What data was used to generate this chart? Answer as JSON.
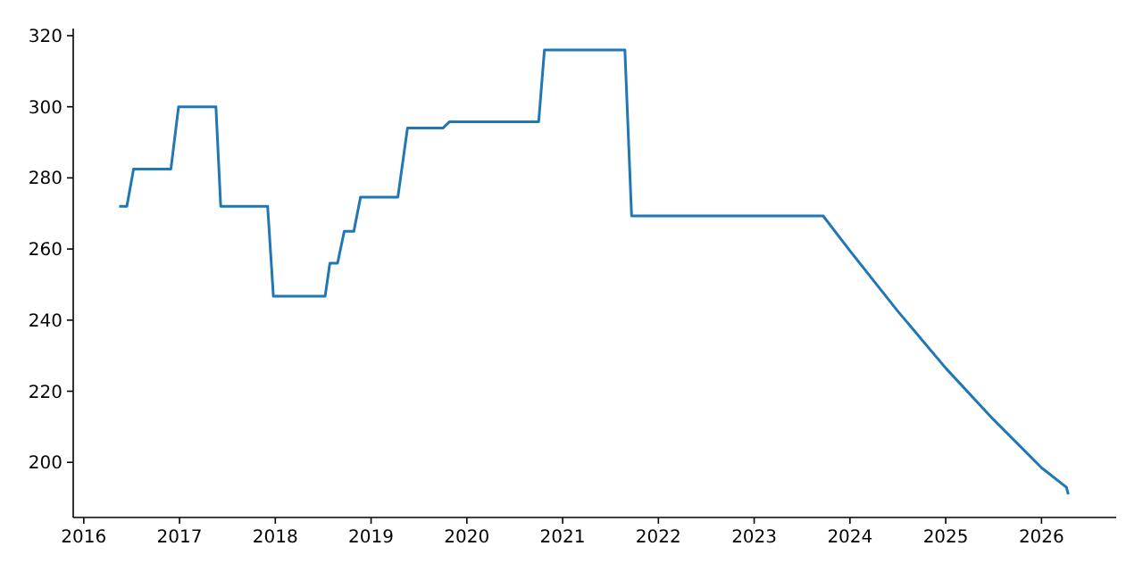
{
  "chart_data": {
    "type": "line",
    "xlim": [
      2015.89,
      2026.78
    ],
    "ylim": [
      184.5,
      322
    ],
    "xticks": [
      2016,
      2017,
      2018,
      2019,
      2020,
      2021,
      2022,
      2023,
      2024,
      2025,
      2026
    ],
    "yticks": [
      200,
      220,
      240,
      260,
      280,
      300,
      320
    ],
    "grid": false,
    "marker": "none",
    "line_style": "solid",
    "series": [
      {
        "color": "#1f77b4",
        "x": [
          2016.37,
          2016.45,
          2016.52,
          2016.91,
          2016.99,
          2017.38,
          2017.43,
          2017.92,
          2017.98,
          2018.52,
          2018.57,
          2018.65,
          2018.72,
          2018.82,
          2018.89,
          2019.28,
          2019.38,
          2019.75,
          2019.82,
          2020.75,
          2020.81,
          2021.65,
          2021.72,
          2023.72,
          2024,
          2024.5,
          2025,
          2025.5,
          2026,
          2026.26,
          2026.28
        ],
        "values": [
          272,
          272,
          282.5,
          282.5,
          300,
          300,
          272,
          272,
          246.7,
          246.7,
          256,
          256,
          265,
          265,
          274.6,
          274.6,
          294,
          294,
          295.8,
          295.8,
          316,
          316,
          269.3,
          269.3,
          259.5,
          242.5,
          226.5,
          212,
          198.5,
          193,
          191
        ]
      }
    ]
  }
}
